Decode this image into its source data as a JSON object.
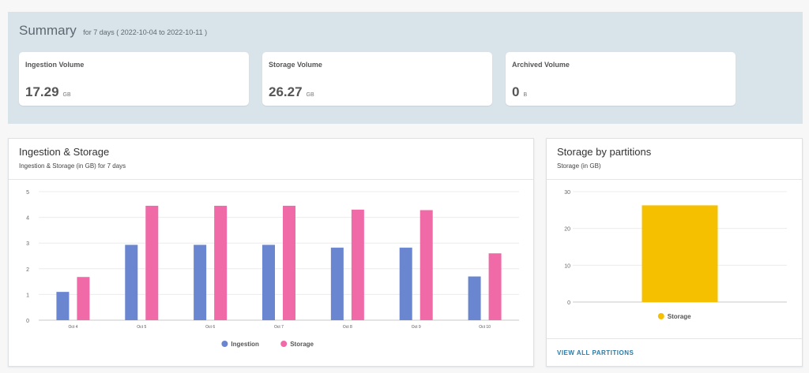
{
  "summary": {
    "title": "Summary",
    "subtitle": "for 7 days ( 2022-10-04 to 2022-10-11 )",
    "cards": [
      {
        "label": "Ingestion Volume",
        "value": "17.29",
        "unit": "GB"
      },
      {
        "label": "Storage Volume",
        "value": "26.27",
        "unit": "GB"
      },
      {
        "label": "Archived Volume",
        "value": "0",
        "unit": "B"
      }
    ]
  },
  "ingestion_panel": {
    "title": "Ingestion & Storage",
    "subtitle": "Ingestion & Storage (in GB) for 7 days"
  },
  "partitions_panel": {
    "title": "Storage by partitions",
    "subtitle": "Storage (in GB)",
    "footer_link": "VIEW ALL PARTITIONS"
  },
  "colors": {
    "ingestion": "#6b86d0",
    "storage": "#f06aa8",
    "partition_storage": "#f5c000"
  },
  "chart_data": [
    {
      "type": "bar",
      "categories": [
        "Oct 4",
        "Oct 5",
        "Oct 6",
        "Oct 7",
        "Oct 8",
        "Oct 9",
        "Oct 10"
      ],
      "series": [
        {
          "name": "Ingestion",
          "values": [
            1.1,
            2.93,
            2.93,
            2.93,
            2.82,
            2.82,
            1.7
          ]
        },
        {
          "name": "Storage",
          "values": [
            1.68,
            4.45,
            4.45,
            4.45,
            4.3,
            4.28,
            2.6
          ]
        }
      ],
      "yticks": [
        0,
        1,
        2,
        3,
        4,
        5
      ],
      "ylim": [
        0,
        5
      ],
      "grid": true,
      "legend": "bottom"
    },
    {
      "type": "bar",
      "categories": [
        ""
      ],
      "series": [
        {
          "name": "Storage",
          "values": [
            26.27
          ]
        }
      ],
      "yticks": [
        0,
        10,
        20,
        30
      ],
      "ylim": [
        0,
        30
      ],
      "grid": true,
      "legend": "bottom"
    }
  ]
}
